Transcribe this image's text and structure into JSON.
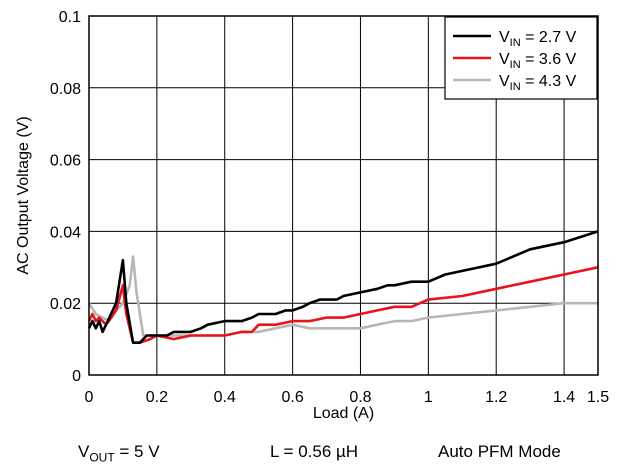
{
  "chart_data": {
    "type": "line",
    "xlabel": "Load (A)",
    "ylabel": "AC Output Voltage (V)",
    "xlim": [
      0,
      1.5
    ],
    "ylim": [
      0,
      0.1
    ],
    "xticks": [
      0,
      0.2,
      0.4,
      0.6,
      0.8,
      1,
      1.2,
      1.4,
      1.5
    ],
    "xtick_labels": [
      "0",
      "0.2",
      "0.4",
      "0.6",
      "0.8",
      "1",
      "1.2",
      "1.4",
      "1.5"
    ],
    "yticks": [
      0,
      0.02,
      0.04,
      0.06,
      0.08,
      0.1
    ],
    "ytick_labels": [
      "0",
      "0.02",
      "0.04",
      "0.06",
      "0.08",
      "0.1"
    ],
    "grid": true,
    "legend_position": "top-right",
    "series": [
      {
        "name_main": "V",
        "name_sub": "IN",
        "name_rest": " = 2.7 V",
        "color": "#000000",
        "x": [
          0,
          0.01,
          0.02,
          0.03,
          0.04,
          0.06,
          0.08,
          0.1,
          0.11,
          0.13,
          0.15,
          0.17,
          0.2,
          0.23,
          0.25,
          0.28,
          0.3,
          0.33,
          0.35,
          0.4,
          0.45,
          0.48,
          0.5,
          0.53,
          0.55,
          0.58,
          0.6,
          0.63,
          0.65,
          0.68,
          0.7,
          0.73,
          0.75,
          0.8,
          0.85,
          0.88,
          0.9,
          0.95,
          1.0,
          1.05,
          1.1,
          1.2,
          1.3,
          1.4,
          1.5
        ],
        "y": [
          0.013,
          0.015,
          0.013,
          0.015,
          0.012,
          0.016,
          0.02,
          0.032,
          0.02,
          0.009,
          0.009,
          0.011,
          0.011,
          0.011,
          0.012,
          0.012,
          0.012,
          0.013,
          0.014,
          0.015,
          0.015,
          0.016,
          0.017,
          0.017,
          0.017,
          0.018,
          0.018,
          0.019,
          0.02,
          0.021,
          0.021,
          0.021,
          0.022,
          0.023,
          0.024,
          0.025,
          0.025,
          0.026,
          0.026,
          0.028,
          0.029,
          0.031,
          0.035,
          0.037,
          0.04
        ]
      },
      {
        "name_main": "V",
        "name_sub": "IN",
        "name_rest": " = 3.6 V",
        "color": "#e8141b",
        "x": [
          0,
          0.01,
          0.02,
          0.03,
          0.05,
          0.08,
          0.1,
          0.11,
          0.13,
          0.15,
          0.18,
          0.2,
          0.25,
          0.3,
          0.33,
          0.35,
          0.4,
          0.45,
          0.48,
          0.5,
          0.55,
          0.6,
          0.65,
          0.7,
          0.75,
          0.8,
          0.85,
          0.9,
          0.95,
          1.0,
          1.1,
          1.2,
          1.3,
          1.4,
          1.5
        ],
        "y": [
          0.015,
          0.017,
          0.015,
          0.016,
          0.014,
          0.018,
          0.025,
          0.017,
          0.009,
          0.009,
          0.01,
          0.011,
          0.01,
          0.011,
          0.011,
          0.011,
          0.011,
          0.012,
          0.012,
          0.014,
          0.014,
          0.015,
          0.015,
          0.016,
          0.016,
          0.017,
          0.018,
          0.019,
          0.019,
          0.021,
          0.022,
          0.024,
          0.026,
          0.028,
          0.03
        ]
      },
      {
        "name_main": "V",
        "name_sub": "IN",
        "name_rest": " = 4.3 V",
        "color": "#b7b7b7",
        "x": [
          0,
          0.02,
          0.04,
          0.06,
          0.08,
          0.1,
          0.12,
          0.13,
          0.14,
          0.16,
          0.2,
          0.25,
          0.3,
          0.35,
          0.4,
          0.45,
          0.5,
          0.55,
          0.6,
          0.65,
          0.7,
          0.75,
          0.8,
          0.85,
          0.9,
          0.95,
          1.0,
          1.1,
          1.2,
          1.3,
          1.4,
          1.5
        ],
        "y": [
          0.02,
          0.017,
          0.016,
          0.015,
          0.018,
          0.02,
          0.025,
          0.033,
          0.023,
          0.011,
          0.011,
          0.011,
          0.011,
          0.011,
          0.011,
          0.012,
          0.012,
          0.013,
          0.014,
          0.013,
          0.013,
          0.013,
          0.013,
          0.014,
          0.015,
          0.015,
          0.016,
          0.017,
          0.018,
          0.019,
          0.02,
          0.02
        ]
      }
    ]
  },
  "captions": {
    "vout_main": "V",
    "vout_sub": "OUT",
    "vout_rest": " = 5 V",
    "inductor": "L = 0.56 µH",
    "mode": "Auto PFM Mode"
  }
}
